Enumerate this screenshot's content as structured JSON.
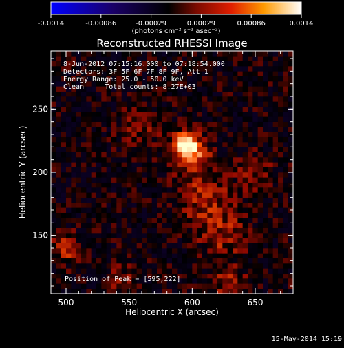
{
  "colorbar": {
    "ticks": [
      "-0.0014",
      "-0.00086",
      "-0.00029",
      "0.00029",
      "0.00086",
      "0.0014"
    ],
    "units": "(photons cm⁻² s⁻¹ asec⁻²)"
  },
  "title": "Reconstructed RHESSI Image",
  "annotations": {
    "time_range": "8-Jun-2012 07:15:16.000 to 07:18:54.000",
    "detectors": "Detectors: 3F 5F 6F 7F 8F 9F, Att 1",
    "energy": "Energy Range: 25.0 - 50.0 keV",
    "clean": "Clean     Total counts: 8.27E+03",
    "peak": "Position of Peak = [595,222]"
  },
  "footer_timestamp": "15-May-2014 15:19",
  "colors": {
    "background": "#000000",
    "text": "#ffffff",
    "colormap_low": "#0000ff",
    "colormap_mid": "#000000",
    "colormap_high": "#ffffff"
  },
  "chart_data": {
    "type": "heatmap",
    "title": "Reconstructed RHESSI Image",
    "xlabel": "Heliocentric X (arcsec)",
    "ylabel": "Heliocentric Y (arcsec)",
    "xlim": [
      488,
      680
    ],
    "ylim": [
      104,
      296
    ],
    "x_ticks": [
      500,
      550,
      600,
      650
    ],
    "y_ticks": [
      150,
      200,
      250
    ],
    "colorbar_range": [
      -0.0014,
      0.0014
    ],
    "peak": {
      "x": 595,
      "y": 222
    },
    "sources": [
      {
        "x": 595,
        "y": 222,
        "amplitude": 1.0,
        "sigma": 7
      },
      {
        "x": 600,
        "y": 212,
        "amplitude": 0.55,
        "sigma": 10
      },
      {
        "x": 610,
        "y": 180,
        "amplitude": 0.4,
        "sigma": 14
      },
      {
        "x": 625,
        "y": 150,
        "amplitude": 0.35,
        "sigma": 14
      },
      {
        "x": 500,
        "y": 140,
        "amplitude": 0.45,
        "sigma": 8
      },
      {
        "x": 650,
        "y": 200,
        "amplitude": 0.3,
        "sigma": 10
      },
      {
        "x": 630,
        "y": 112,
        "amplitude": 0.45,
        "sigma": 8
      },
      {
        "x": 560,
        "y": 235,
        "amplitude": 0.25,
        "sigma": 12
      },
      {
        "x": 545,
        "y": 115,
        "amplitude": 0.25,
        "sigma": 9
      }
    ]
  }
}
